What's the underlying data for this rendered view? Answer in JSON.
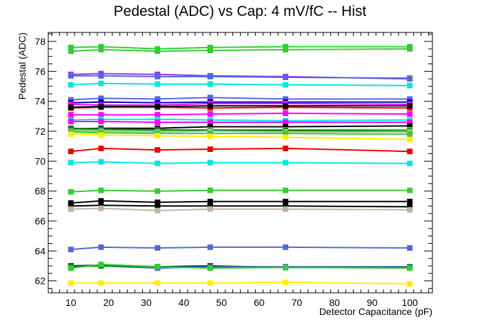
{
  "chart_data": {
    "type": "line",
    "title": "Pedestal (ADC) vs Cap: 4 mV/fC -- Hist",
    "xlabel": "Detector Capacitance (pF)",
    "ylabel": "Pedestal (ADC)",
    "xlim": [
      4,
      106
    ],
    "ylim": [
      61.2,
      78.6
    ],
    "x": [
      10,
      18,
      33,
      47,
      67,
      100
    ],
    "x_ticks": [
      "10",
      "20",
      "30",
      "40",
      "50",
      "60",
      "70",
      "80",
      "90",
      "100"
    ],
    "y_ticks": [
      "62",
      "64",
      "66",
      "68",
      "70",
      "72",
      "74",
      "76",
      "78"
    ],
    "grid": false,
    "legend": "none",
    "series": [
      {
        "color": "#33cc33",
        "values": [
          77.6,
          77.65,
          77.5,
          77.6,
          77.65,
          77.65
        ]
      },
      {
        "color": "#33cc33",
        "values": [
          77.35,
          77.45,
          77.35,
          77.4,
          77.45,
          77.5
        ]
      },
      {
        "color": "#9933ff",
        "values": [
          75.8,
          75.85,
          75.8,
          75.7,
          75.65,
          75.5
        ]
      },
      {
        "color": "#5566dd",
        "values": [
          75.7,
          75.7,
          75.65,
          75.65,
          75.6,
          75.55
        ]
      },
      {
        "color": "#00e5e5",
        "values": [
          75.1,
          75.2,
          75.15,
          75.15,
          75.1,
          75.05
        ]
      },
      {
        "color": "#5566dd",
        "values": [
          74.1,
          74.2,
          74.15,
          74.25,
          74.15,
          74.15
        ]
      },
      {
        "color": "#0000cc",
        "values": [
          73.9,
          73.95,
          73.9,
          73.95,
          73.95,
          73.95
        ]
      },
      {
        "color": "#ff00ff",
        "values": [
          73.8,
          73.75,
          73.75,
          73.85,
          73.85,
          73.8
        ]
      },
      {
        "color": "#ee0000",
        "values": [
          73.55,
          73.6,
          73.6,
          73.55,
          73.6,
          73.55
        ]
      },
      {
        "color": "#000000",
        "values": [
          73.6,
          73.65,
          73.65,
          73.7,
          73.7,
          73.7
        ]
      },
      {
        "color": "#ff00ff",
        "values": [
          73.1,
          73.1,
          73.1,
          73.15,
          73.2,
          73.15
        ]
      },
      {
        "color": "#00e5e5",
        "values": [
          72.75,
          72.8,
          72.8,
          72.75,
          72.7,
          72.75
        ]
      },
      {
        "color": "#ff00ff",
        "values": [
          72.65,
          72.65,
          72.6,
          72.6,
          72.6,
          72.6
        ]
      },
      {
        "color": "#000000",
        "values": [
          72.15,
          72.2,
          72.2,
          72.3,
          72.3,
          72.35
        ]
      },
      {
        "color": "#33cc33",
        "values": [
          72.1,
          72.1,
          72.05,
          72.1,
          72.1,
          72.1
        ]
      },
      {
        "color": "#008800",
        "values": [
          72.2,
          72.15,
          72.1,
          72.05,
          72.05,
          72.0
        ]
      },
      {
        "color": "#bfb3a6",
        "values": [
          72.0,
          72.0,
          71.95,
          72.0,
          71.95,
          71.95
        ]
      },
      {
        "color": "#33cc33",
        "values": [
          71.95,
          71.9,
          71.85,
          71.85,
          71.85,
          71.8
        ]
      },
      {
        "color": "#ffee00",
        "values": [
          71.8,
          71.75,
          71.7,
          71.65,
          71.6,
          71.45
        ]
      },
      {
        "color": "#ee0000",
        "values": [
          70.65,
          70.85,
          70.75,
          70.8,
          70.85,
          70.65
        ]
      },
      {
        "color": "#00e5e5",
        "values": [
          69.9,
          69.95,
          69.85,
          69.9,
          69.9,
          69.85
        ]
      },
      {
        "color": "#33cc33",
        "values": [
          67.95,
          68.05,
          68.0,
          68.05,
          68.05,
          68.05
        ]
      },
      {
        "color": "#000000",
        "values": [
          67.2,
          67.35,
          67.25,
          67.3,
          67.3,
          67.3
        ]
      },
      {
        "color": "#000000",
        "values": [
          67.0,
          67.05,
          67.0,
          67.0,
          67.0,
          66.95
        ]
      },
      {
        "color": "#bfb3a6",
        "values": [
          66.8,
          66.85,
          66.7,
          66.8,
          66.8,
          66.75
        ]
      },
      {
        "color": "#5566dd",
        "values": [
          64.1,
          64.25,
          64.2,
          64.25,
          64.25,
          64.2
        ]
      },
      {
        "color": "#0000cc",
        "values": [
          63.0,
          63.05,
          62.95,
          63.0,
          62.9,
          62.9
        ]
      },
      {
        "color": "#5566dd",
        "values": [
          62.95,
          63.0,
          62.85,
          62.95,
          62.95,
          62.95
        ]
      },
      {
        "color": "#008800",
        "values": [
          62.95,
          63.0,
          62.95,
          62.9,
          62.9,
          62.9
        ]
      },
      {
        "color": "#33cc33",
        "values": [
          62.85,
          63.1,
          62.95,
          62.85,
          62.9,
          62.85
        ]
      },
      {
        "color": "#ffee00",
        "values": [
          61.85,
          61.85,
          61.85,
          61.85,
          61.9,
          61.8
        ]
      }
    ]
  }
}
